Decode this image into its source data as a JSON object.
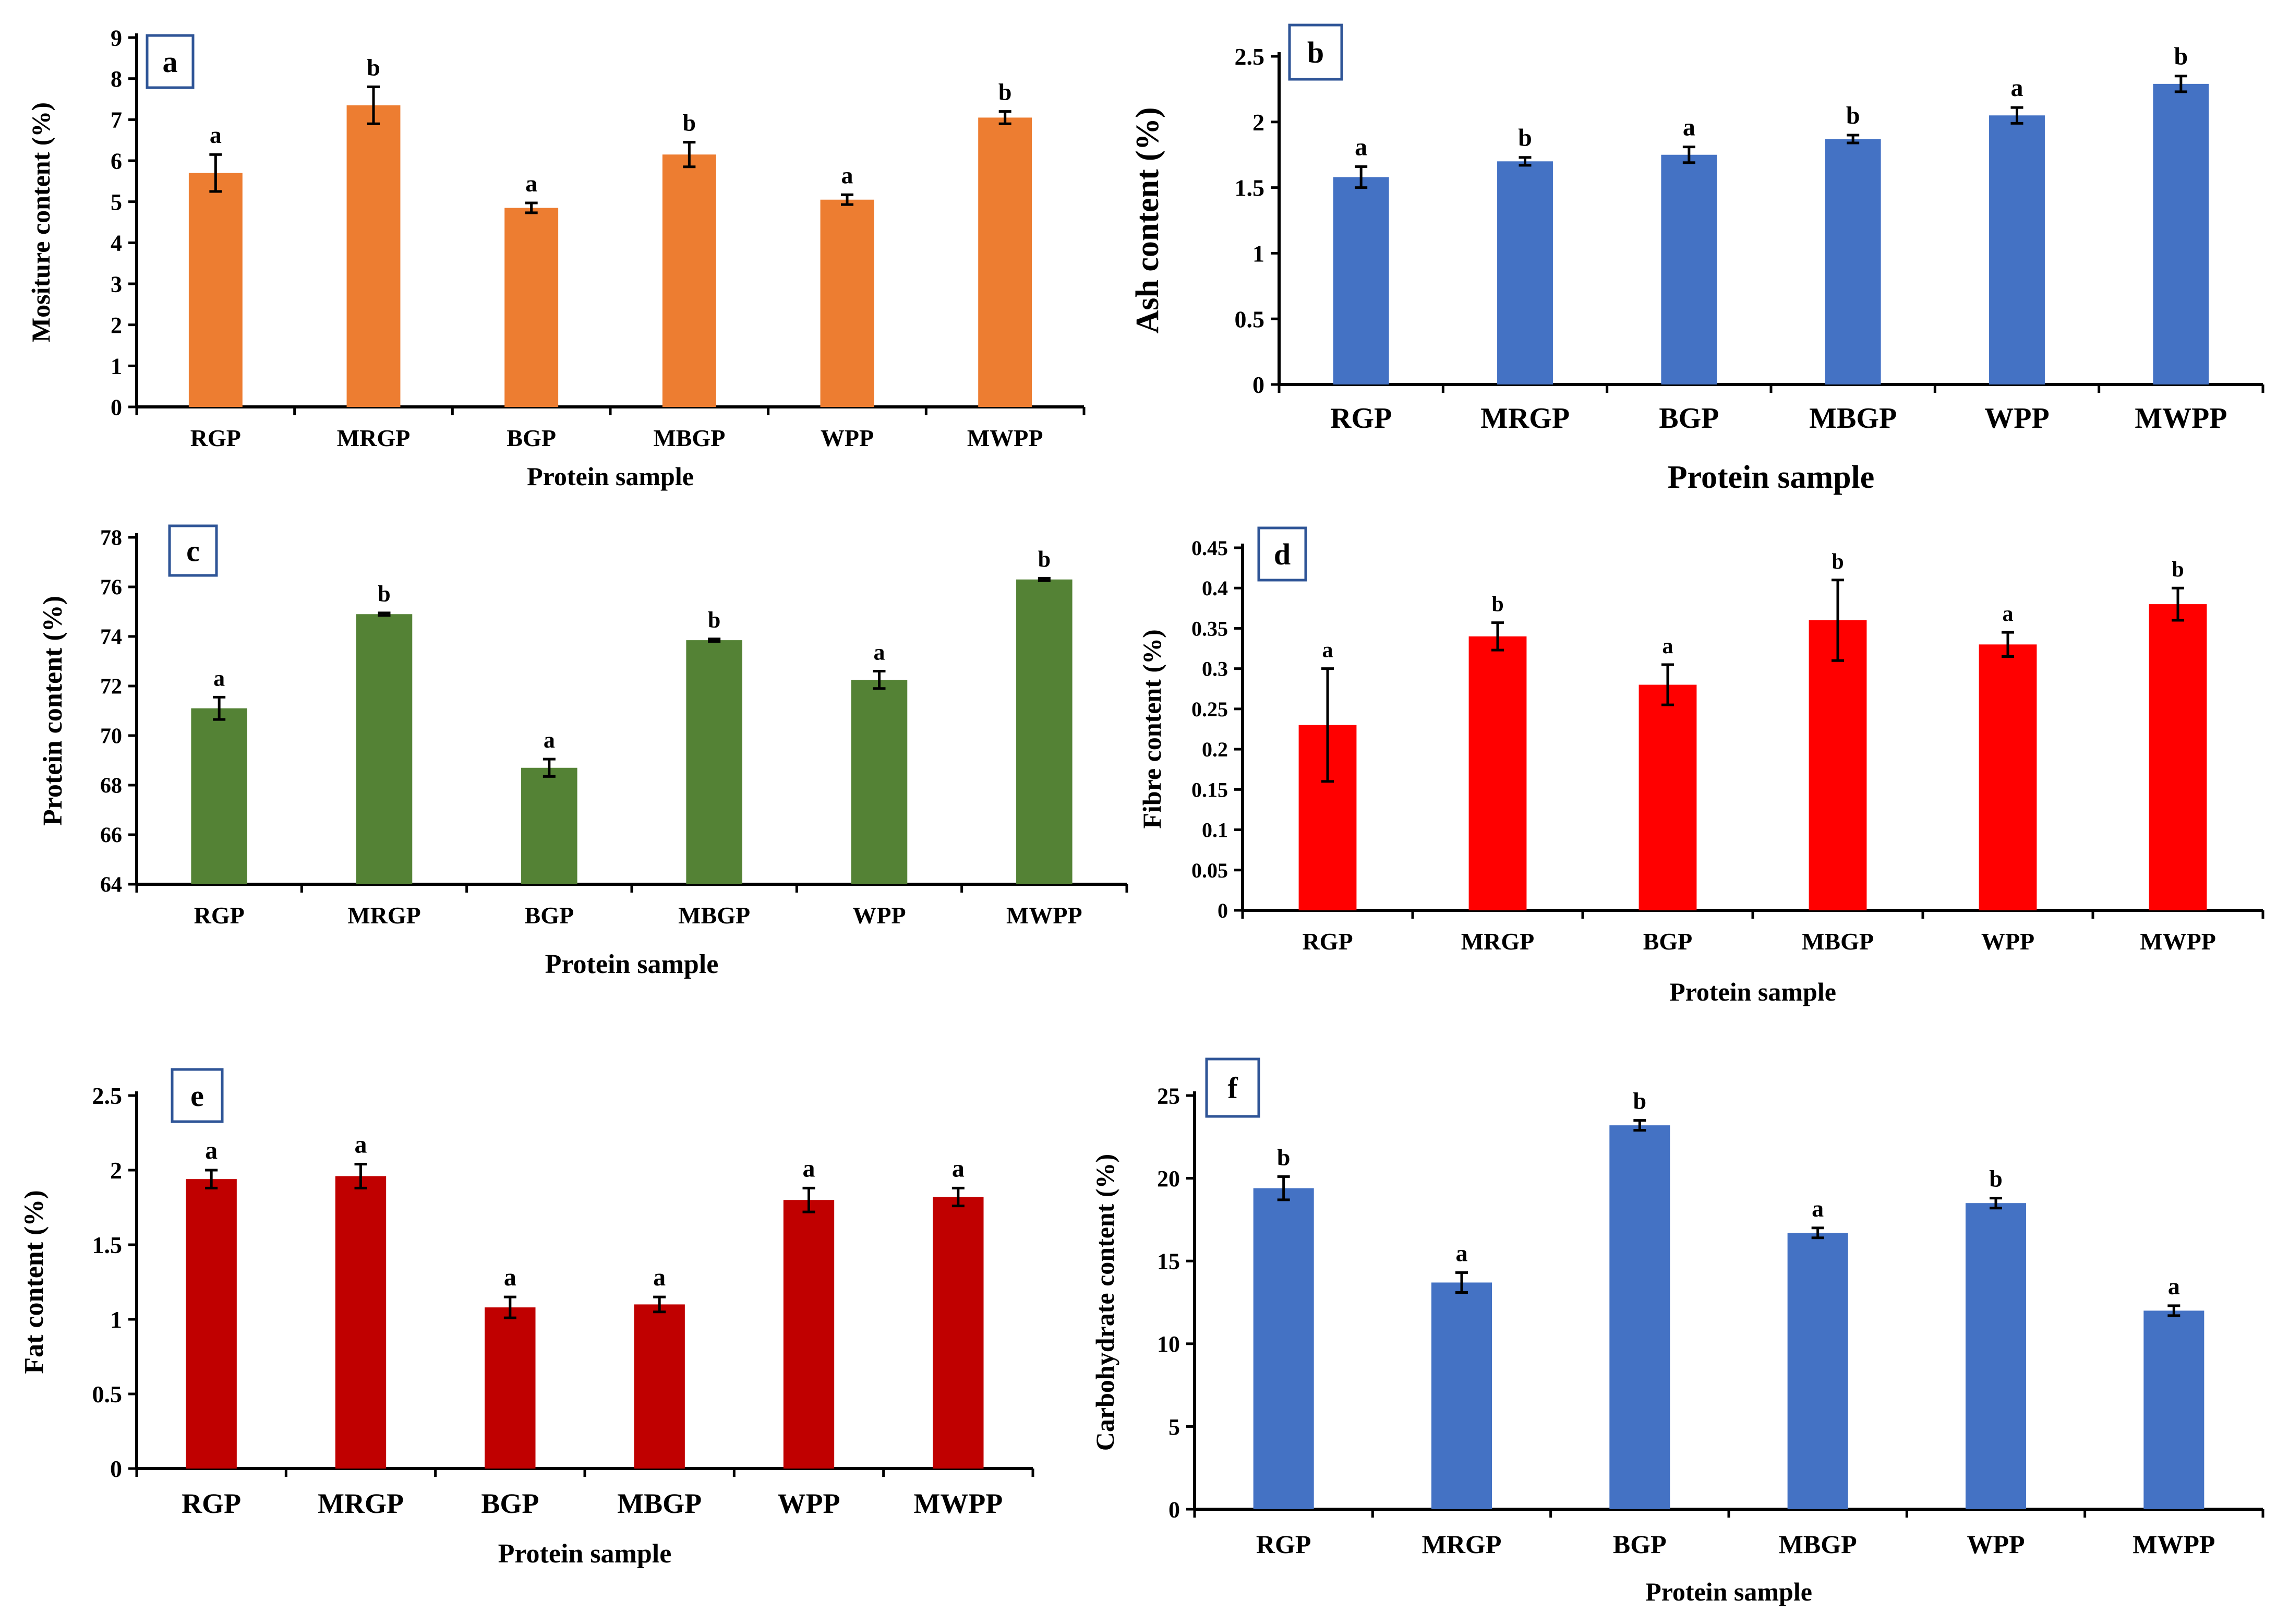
{
  "chart_data": [
    {
      "panel": "a",
      "type": "bar",
      "categories": [
        "RGP",
        "MRGP",
        "BGP",
        "MBGP",
        "WPP",
        "MWPP"
      ],
      "values": [
        5.7,
        7.35,
        4.85,
        6.15,
        5.05,
        7.05
      ],
      "errors": [
        0.45,
        0.45,
        0.12,
        0.3,
        0.12,
        0.15
      ],
      "significance": [
        "a",
        "b",
        "a",
        "b",
        "a",
        "b"
      ],
      "xlabel": "Protein sample",
      "ylabel": "Mositure content (%)",
      "ylim": [
        0,
        9
      ],
      "yticks": [
        0,
        1,
        2,
        3,
        4,
        5,
        6,
        7,
        8,
        9
      ],
      "color": "#ED7D31",
      "grid": false
    },
    {
      "panel": "b",
      "type": "bar",
      "categories": [
        "RGP",
        "MRGP",
        "BGP",
        "MBGP",
        "WPP",
        "MWPP"
      ],
      "values": [
        1.58,
        1.7,
        1.75,
        1.87,
        2.05,
        2.29
      ],
      "errors": [
        0.08,
        0.03,
        0.06,
        0.03,
        0.06,
        0.06
      ],
      "significance": [
        "a",
        "b",
        "a",
        "b",
        "a",
        "b"
      ],
      "xlabel": "Protein sample",
      "ylabel": "Ash content (%)",
      "ylim": [
        0,
        2.5
      ],
      "yticks": [
        0,
        0.5,
        1,
        1.5,
        2,
        2.5
      ],
      "color": "#4472C4",
      "grid": false
    },
    {
      "panel": "c",
      "type": "bar",
      "categories": [
        "RGP",
        "MRGP",
        "BGP",
        "MBGP",
        "WPP",
        "MWPP"
      ],
      "values": [
        71.1,
        74.9,
        68.7,
        73.85,
        72.25,
        76.3
      ],
      "errors": [
        0.45,
        0.05,
        0.35,
        0.05,
        0.35,
        0.05
      ],
      "significance": [
        "a",
        "b",
        "a",
        "b",
        "a",
        "b"
      ],
      "xlabel": "Protein sample",
      "ylabel": "Protein content (%)",
      "ylim": [
        64,
        78
      ],
      "yticks": [
        64,
        66,
        68,
        70,
        72,
        74,
        76,
        78
      ],
      "color": "#548235",
      "grid": false
    },
    {
      "panel": "d",
      "type": "bar",
      "categories": [
        "RGP",
        "MRGP",
        "BGP",
        "MBGP",
        "WPP",
        "MWPP"
      ],
      "values": [
        0.23,
        0.34,
        0.28,
        0.36,
        0.33,
        0.38
      ],
      "errors": [
        0.07,
        0.017,
        0.025,
        0.05,
        0.015,
        0.02
      ],
      "significance": [
        "a",
        "b",
        "a",
        "b",
        "a",
        "b"
      ],
      "xlabel": "Protein sample",
      "ylabel": "Fibre content (%)",
      "ylim": [
        0,
        0.45
      ],
      "yticks": [
        0,
        0.05,
        0.1,
        0.15,
        0.2,
        0.25,
        0.3,
        0.35,
        0.4,
        0.45
      ],
      "color": "#FF0000",
      "grid": false
    },
    {
      "panel": "e",
      "type": "bar",
      "categories": [
        "RGP",
        "MRGP",
        "BGP",
        "MBGP",
        "WPP",
        "MWPP"
      ],
      "values": [
        1.94,
        1.96,
        1.08,
        1.1,
        1.8,
        1.82
      ],
      "errors": [
        0.06,
        0.08,
        0.07,
        0.05,
        0.08,
        0.06
      ],
      "significance": [
        "a",
        "a",
        "a",
        "a",
        "a",
        "a"
      ],
      "xlabel": "Protein sample",
      "ylabel": "Fat content (%)",
      "ylim": [
        0,
        2.5
      ],
      "yticks": [
        0,
        0.5,
        1,
        1.5,
        2,
        2.5
      ],
      "color": "#C00000",
      "grid": false
    },
    {
      "panel": "f",
      "type": "bar",
      "categories": [
        "RGP",
        "MRGP",
        "BGP",
        "MBGP",
        "WPP",
        "MWPP"
      ],
      "values": [
        19.4,
        13.7,
        23.2,
        16.7,
        18.5,
        12.0
      ],
      "errors": [
        0.7,
        0.6,
        0.3,
        0.3,
        0.3,
        0.3
      ],
      "significance": [
        "b",
        "a",
        "b",
        "a",
        "b",
        "a"
      ],
      "xlabel": "Protein sample",
      "ylabel": "Carbohydrate content (%)",
      "ylim": [
        0,
        25
      ],
      "yticks": [
        0,
        5,
        10,
        15,
        20,
        25
      ],
      "color": "#4472C4",
      "grid": false
    }
  ]
}
